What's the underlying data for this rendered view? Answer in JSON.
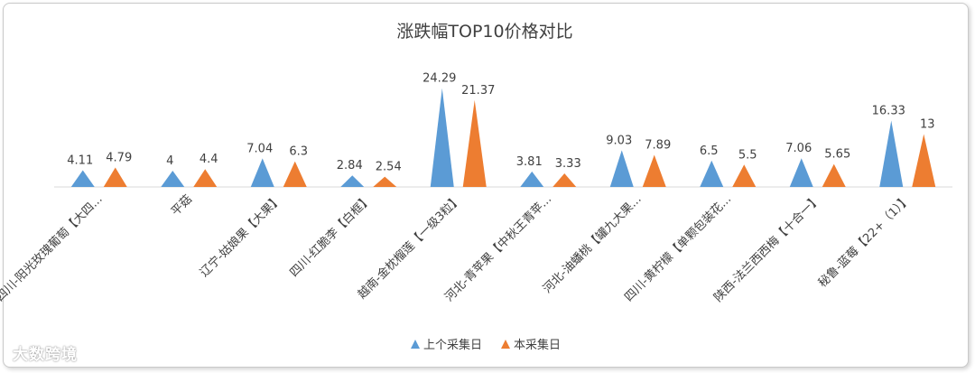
{
  "watermark": "大数跨境",
  "chart_data": {
    "type": "bar",
    "title": "涨跌幅TOP10价格对比",
    "categories": [
      "四川-阳光玫瑰葡萄【大四...",
      "平菇",
      "辽宁-姑娘果【大果】",
      "四川-红脆李【白框】",
      "越南-金枕榴莲【一级3粒】",
      "河北-青苹果【中秋王青苹...",
      "河北-油蟠桃【罐九大果...",
      "四川-黄柠檬【单颗包装花...",
      "陕西-法兰西西梅【十合一】",
      "秘鲁-蓝莓【22+（1）】"
    ],
    "series": [
      {
        "name": "上个采集日",
        "color": "#5b9bd5",
        "values": [
          4.11,
          4,
          7.04,
          2.84,
          24.29,
          3.81,
          9.03,
          6.5,
          7.06,
          16.33
        ],
        "labels": [
          "4.11",
          "4",
          "7.04",
          "2.84",
          "24.29",
          "3.81",
          "9.03",
          "6.5",
          "7.06",
          "16.33"
        ]
      },
      {
        "name": "本采集日",
        "color": "#ed7d31",
        "values": [
          4.79,
          4.4,
          6.3,
          2.54,
          21.37,
          3.33,
          7.89,
          5.5,
          5.65,
          13
        ],
        "labels": [
          "4.79",
          "4.4",
          "6.3",
          "2.54",
          "21.37",
          "3.33",
          "7.89",
          "5.5",
          "5.65",
          "13"
        ]
      }
    ],
    "mark_shape": "triangle",
    "legend": "bottom",
    "grid": false
  }
}
